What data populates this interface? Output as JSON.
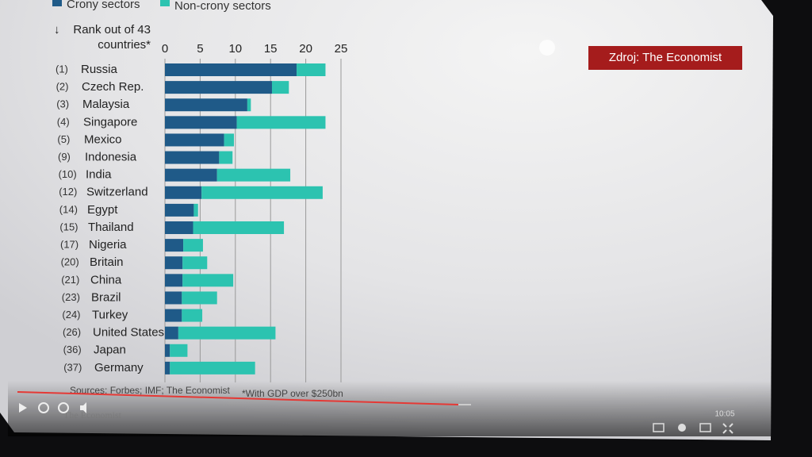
{
  "chart_data": {
    "type": "stacked-barh",
    "legend": [
      "Crony sectors",
      "Non-crony sectors"
    ],
    "axis_label": "Rank out of 43 countries*",
    "ranks": [
      "(1)",
      "(2)",
      "(3)",
      "(4)",
      "(5)",
      "(9)",
      "(10)",
      "(12)",
      "(14)",
      "(15)",
      "(17)",
      "(20)",
      "(21)",
      "(23)",
      "(24)",
      "(26)",
      "(36)",
      "(37)"
    ],
    "categories": [
      "Russia",
      "Czech Rep.",
      "Malaysia",
      "Singapore",
      "Mexico",
      "Indonesia",
      "India",
      "Switzerland",
      "Egypt",
      "Thailand",
      "Nigeria",
      "Britain",
      "China",
      "Brazil",
      "Turkey",
      "United States",
      "Japan",
      "Germany"
    ],
    "series": [
      {
        "name": "Crony sectors",
        "color": "#1f5a88",
        "values": [
          18.7,
          15.2,
          11.7,
          10.2,
          8.4,
          7.7,
          7.4,
          5.2,
          4.1,
          4.0,
          2.6,
          2.5,
          2.5,
          2.4,
          2.4,
          1.9,
          0.7,
          0.7
        ]
      },
      {
        "name": "Non-crony sectors",
        "color": "#2cc3b0",
        "values": [
          4.1,
          2.4,
          0.5,
          12.6,
          1.4,
          1.9,
          10.4,
          17.2,
          0.6,
          12.9,
          2.8,
          3.5,
          7.2,
          5.0,
          2.9,
          13.8,
          2.5,
          12.1
        ]
      }
    ],
    "xlim": [
      0,
      25
    ],
    "xticks": [
      0,
      5,
      10,
      15,
      20,
      25
    ],
    "grid": true,
    "source": "Sources: Forbes; IMF; The Economist",
    "footnote": "*With GDP over $250bn",
    "badge": "Zdroj: The Economist",
    "watermark": "The Economist",
    "time": "10:05"
  }
}
